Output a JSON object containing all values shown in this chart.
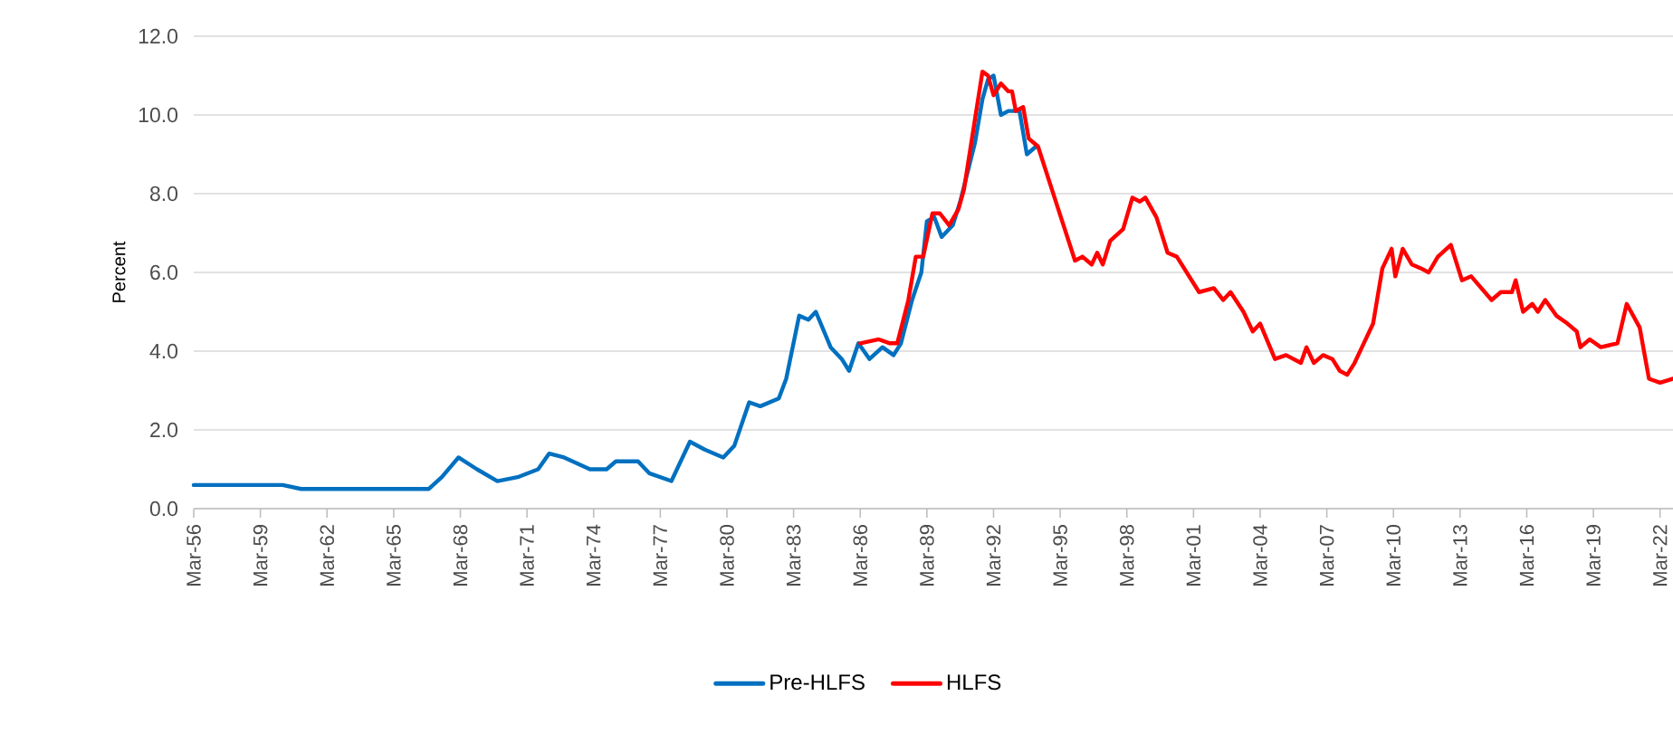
{
  "chart_data": {
    "type": "line",
    "ylabel": "Percent",
    "grid": "y",
    "legend": "bottom",
    "marker": "none",
    "line_style": "solid",
    "xlim": [
      "1956-03",
      "2022-10"
    ],
    "xticks": [
      {
        "value": "1956-03",
        "label": "Mar-56"
      },
      {
        "value": "1959-03",
        "label": "Mar-59"
      },
      {
        "value": "1962-03",
        "label": "Mar-62"
      },
      {
        "value": "1965-03",
        "label": "Mar-65"
      },
      {
        "value": "1968-03",
        "label": "Mar-68"
      },
      {
        "value": "1971-03",
        "label": "Mar-71"
      },
      {
        "value": "1974-03",
        "label": "Mar-74"
      },
      {
        "value": "1977-03",
        "label": "Mar-77"
      },
      {
        "value": "1980-03",
        "label": "Mar-80"
      },
      {
        "value": "1983-03",
        "label": "Mar-83"
      },
      {
        "value": "1986-03",
        "label": "Mar-86"
      },
      {
        "value": "1989-03",
        "label": "Mar-89"
      },
      {
        "value": "1992-03",
        "label": "Mar-92"
      },
      {
        "value": "1995-03",
        "label": "Mar-95"
      },
      {
        "value": "1998-03",
        "label": "Mar-98"
      },
      {
        "value": "2001-03",
        "label": "Mar-01"
      },
      {
        "value": "2004-03",
        "label": "Mar-04"
      },
      {
        "value": "2007-03",
        "label": "Mar-07"
      },
      {
        "value": "2010-03",
        "label": "Mar-10"
      },
      {
        "value": "2013-03",
        "label": "Mar-13"
      },
      {
        "value": "2016-03",
        "label": "Mar-16"
      },
      {
        "value": "2019-03",
        "label": "Mar-19"
      },
      {
        "value": "2022-03",
        "label": "Mar-22"
      }
    ],
    "ylim": [
      0,
      12
    ],
    "yticks": [
      {
        "value": 0,
        "label": "0.0"
      },
      {
        "value": 2,
        "label": "2.0"
      },
      {
        "value": 4,
        "label": "4.0"
      },
      {
        "value": 6,
        "label": "6.0"
      },
      {
        "value": 8,
        "label": "8.0"
      },
      {
        "value": 10,
        "label": "10.0"
      },
      {
        "value": 12,
        "label": "12.0"
      }
    ],
    "series": [
      {
        "name": "Pre-HLFS",
        "color": "#0070c0",
        "x": [
          "1956-03",
          "1958-01",
          "1959-04",
          "1960-03",
          "1961-01",
          "1961-08",
          "1962-11",
          "1964-01",
          "1965-09",
          "1966-10",
          "1967-05",
          "1968-02",
          "1968-12",
          "1969-11",
          "1970-10",
          "1971-09",
          "1972-03",
          "1972-11",
          "1974-01",
          "1974-10",
          "1975-03",
          "1976-03",
          "1976-09",
          "1977-09",
          "1978-07",
          "1979-03",
          "1980-01",
          "1980-07",
          "1981-03",
          "1981-09",
          "1982-07",
          "1982-11",
          "1983-06",
          "1983-11",
          "1984-03",
          "1984-11",
          "1985-05",
          "1985-09",
          "1986-02",
          "1986-08",
          "1987-03",
          "1987-09",
          "1988-01",
          "1988-07",
          "1988-12",
          "1989-03",
          "1989-07",
          "1989-11",
          "1990-05",
          "1990-09",
          "1991-05",
          "1991-09",
          "1991-12",
          "1992-03",
          "1992-07",
          "1992-11",
          "1993-05",
          "1993-09",
          "1994-02"
        ],
        "values": [
          0.6,
          0.6,
          0.6,
          0.6,
          0.5,
          0.5,
          0.5,
          0.5,
          0.5,
          0.5,
          0.8,
          1.3,
          1.0,
          0.7,
          0.8,
          1.0,
          1.4,
          1.3,
          1.0,
          1.0,
          1.2,
          1.2,
          0.9,
          0.7,
          1.7,
          1.5,
          1.3,
          1.6,
          2.7,
          2.6,
          2.8,
          3.3,
          4.9,
          4.8,
          5.0,
          4.1,
          3.8,
          3.5,
          4.2,
          3.8,
          4.1,
          3.9,
          4.2,
          5.3,
          6.0,
          7.3,
          7.4,
          6.9,
          7.2,
          7.8,
          9.3,
          10.4,
          10.9,
          11.0,
          10.0,
          10.1,
          10.1,
          9.0,
          9.2
        ]
      },
      {
        "name": "HLFS",
        "color": "#ff0000",
        "x": [
          "1986-03",
          "1987-01",
          "1987-07",
          "1987-11",
          "1988-05",
          "1988-09",
          "1989-01",
          "1989-06",
          "1989-10",
          "1990-03",
          "1990-08",
          "1990-11",
          "1991-09",
          "1991-12",
          "1992-03",
          "1992-07",
          "1992-11",
          "1993-01",
          "1993-03",
          "1993-07",
          "1993-10",
          "1994-03",
          "1995-02",
          "1995-11",
          "1996-03",
          "1996-08",
          "1996-11",
          "1997-02",
          "1997-06",
          "1998-01",
          "1998-06",
          "1998-10",
          "1999-01",
          "1999-07",
          "2000-01",
          "2000-06",
          "2001-06",
          "2002-02",
          "2002-07",
          "2002-11",
          "2003-06",
          "2003-11",
          "2004-03",
          "2004-11",
          "2005-05",
          "2006-01",
          "2006-04",
          "2006-08",
          "2007-01",
          "2007-06",
          "2007-10",
          "2008-02",
          "2008-06",
          "2008-10",
          "2009-04",
          "2009-09",
          "2010-02",
          "2010-04",
          "2010-08",
          "2011-01",
          "2011-06",
          "2011-10",
          "2012-03",
          "2012-10",
          "2013-04",
          "2013-09",
          "2014-08",
          "2015-01",
          "2015-07",
          "2015-09",
          "2016-01",
          "2016-06",
          "2016-09",
          "2017-01",
          "2017-07",
          "2018-01",
          "2018-06",
          "2018-08",
          "2019-01",
          "2019-07",
          "2020-04",
          "2020-09",
          "2021-04",
          "2021-09",
          "2022-03",
          "2022-10"
        ],
        "values": [
          4.2,
          4.3,
          4.2,
          4.2,
          5.3,
          6.4,
          6.4,
          7.5,
          7.5,
          7.2,
          7.6,
          8.1,
          11.1,
          11.0,
          10.5,
          10.8,
          10.6,
          10.6,
          10.1,
          10.2,
          9.4,
          9.2,
          7.6,
          6.3,
          6.4,
          6.2,
          6.5,
          6.2,
          6.8,
          7.1,
          7.9,
          7.8,
          7.9,
          7.4,
          6.5,
          6.4,
          5.5,
          5.6,
          5.3,
          5.5,
          5.0,
          4.5,
          4.7,
          3.8,
          3.9,
          3.7,
          4.1,
          3.7,
          3.9,
          3.8,
          3.5,
          3.4,
          3.7,
          4.1,
          4.7,
          6.1,
          6.6,
          5.9,
          6.6,
          6.2,
          6.1,
          6.0,
          6.4,
          6.7,
          5.8,
          5.9,
          5.3,
          5.5,
          5.5,
          5.8,
          5.0,
          5.2,
          5.0,
          5.3,
          4.9,
          4.7,
          4.5,
          4.1,
          4.3,
          4.1,
          4.2,
          5.2,
          4.6,
          3.3,
          3.2,
          3.3
        ]
      }
    ]
  }
}
